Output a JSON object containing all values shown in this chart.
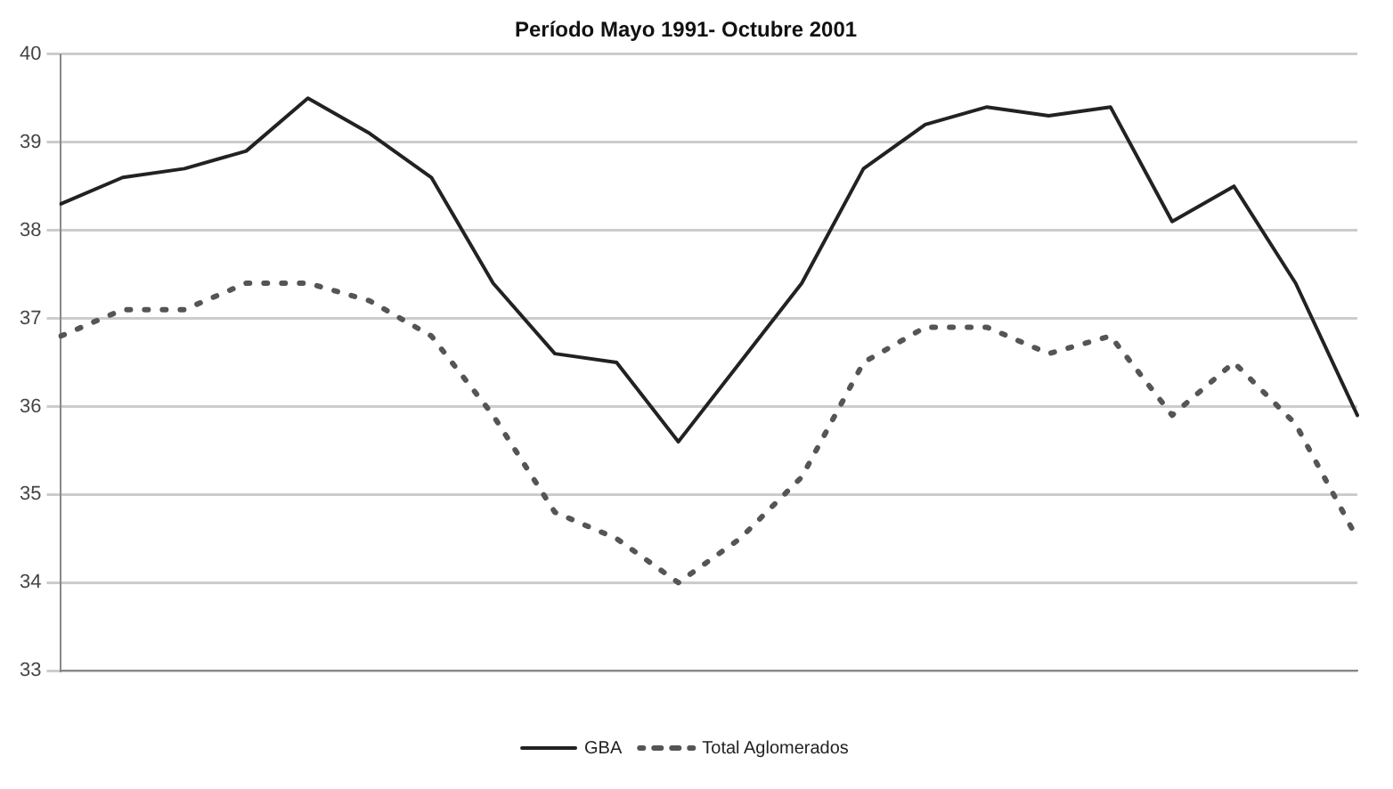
{
  "chart_data": {
    "type": "line",
    "title": "Período Mayo 1991- Octubre 2001",
    "categories": [
      null,
      null,
      null,
      null,
      null,
      null,
      null,
      null,
      null,
      null,
      null,
      null,
      null,
      null,
      null,
      null,
      null,
      null,
      null,
      null,
      null,
      null
    ],
    "series": [
      {
        "name": "GBA",
        "color": "#222222",
        "line_style": "solid",
        "values": [
          38.3,
          38.6,
          38.7,
          38.9,
          39.5,
          39.1,
          38.6,
          37.4,
          36.6,
          36.5,
          35.6,
          36.5,
          37.4,
          38.7,
          39.2,
          39.4,
          39.3,
          39.4,
          38.1,
          38.5,
          37.4,
          35.9
        ]
      },
      {
        "name": "Total Aglomerados",
        "color": "#555555",
        "line_style": "dotted",
        "values": [
          36.8,
          37.1,
          37.1,
          37.4,
          37.4,
          37.2,
          36.8,
          35.9,
          34.8,
          34.5,
          34.0,
          34.5,
          35.2,
          36.5,
          36.9,
          36.9,
          36.6,
          36.8,
          35.9,
          36.5,
          35.8,
          34.5
        ]
      }
    ],
    "ylim": [
      33,
      40
    ],
    "yticks": [
      33,
      34,
      35,
      36,
      37,
      38,
      39,
      40
    ],
    "grid": "y",
    "legend": "bottom",
    "marker": "none"
  }
}
